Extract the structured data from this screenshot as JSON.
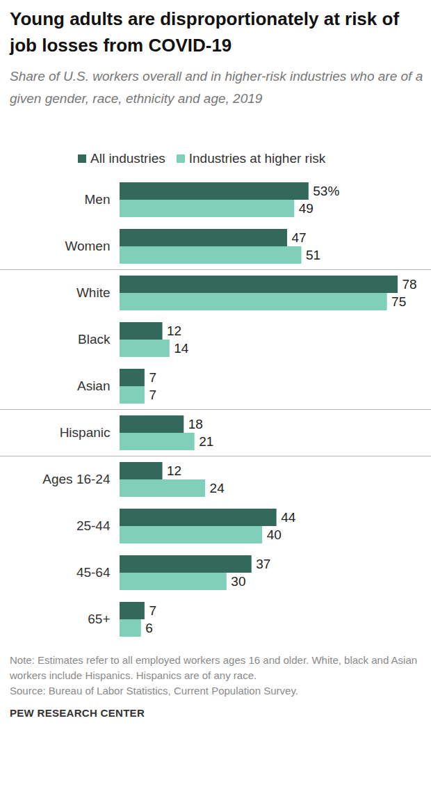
{
  "chart_data": {
    "type": "bar",
    "orientation": "horizontal",
    "title": "Young adults are disproportionately at risk of job losses from COVID-19",
    "subtitle": "Share of U.S. workers overall and in higher-risk industries who are of a given gender, race, ethnicity and age, 2019",
    "categories": [
      "Men",
      "Women",
      "White",
      "Black",
      "Asian",
      "Hispanic",
      "Ages 16-24",
      "25-44",
      "45-64",
      "65+"
    ],
    "series": [
      {
        "name": "All industries",
        "color": "#33695a",
        "values": [
          53,
          47,
          78,
          12,
          7,
          18,
          12,
          44,
          37,
          7
        ],
        "value_labels": [
          "53%",
          "47",
          "78",
          "12",
          "7",
          "18",
          "12",
          "44",
          "37",
          "7"
        ]
      },
      {
        "name": "Industries at higher risk",
        "color": "#80cfb8",
        "values": [
          49,
          51,
          75,
          14,
          7,
          21,
          24,
          40,
          30,
          6
        ]
      }
    ],
    "xlim": [
      0,
      78
    ],
    "data_labels": true,
    "tick_labels": "y",
    "legend": "top",
    "note": "Note: Estimates refer to all employed workers ages 16 and older. White, black and Asian workers include Hispanics. Hispanics are of any race.",
    "source": "Source: Bureau of Labor Statistics, Current Population Survey.",
    "credit": "PEW RESEARCH CENTER"
  }
}
